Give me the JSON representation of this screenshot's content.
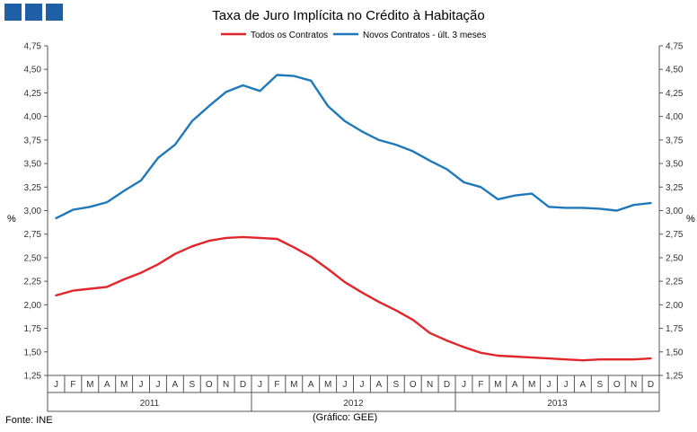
{
  "header": {
    "logo_color": "#1f5fa8"
  },
  "chart_data": {
    "type": "line",
    "title": "Taxa de Juro Implícita no Crédito à Habitação",
    "ylabel_left": "%",
    "ylabel_right": "%",
    "ylim": [
      1.25,
      4.75
    ],
    "yticks": [
      "1,25",
      "1,50",
      "1,75",
      "2,00",
      "2,25",
      "2,50",
      "2,75",
      "3,00",
      "3,25",
      "3,50",
      "3,75",
      "4,00",
      "4,25",
      "4,50",
      "4,75"
    ],
    "ytick_values": [
      1.25,
      1.5,
      1.75,
      2.0,
      2.25,
      2.5,
      2.75,
      3.0,
      3.25,
      3.5,
      3.75,
      4.0,
      4.25,
      4.5,
      4.75
    ],
    "months": [
      "J",
      "F",
      "M",
      "A",
      "M",
      "J",
      "J",
      "A",
      "S",
      "O",
      "N",
      "D",
      "J",
      "F",
      "M",
      "A",
      "M",
      "J",
      "J",
      "A",
      "S",
      "O",
      "N",
      "D",
      "J",
      "F",
      "M",
      "A",
      "M",
      "J",
      "J",
      "A",
      "S",
      "O",
      "N",
      "D"
    ],
    "years": [
      "2011",
      "2012",
      "2013"
    ],
    "series": [
      {
        "name": "Todos os Contratos",
        "color": "#e0262b",
        "values": [
          2.1,
          2.15,
          2.17,
          2.19,
          2.27,
          2.34,
          2.43,
          2.54,
          2.62,
          2.68,
          2.71,
          2.72,
          2.71,
          2.7,
          2.61,
          2.51,
          2.38,
          2.24,
          2.13,
          2.03,
          1.94,
          1.84,
          1.7,
          1.62,
          1.55,
          1.49,
          1.46,
          1.45,
          1.44,
          1.43,
          1.42,
          1.41,
          1.42,
          1.42,
          1.42,
          1.43
        ]
      },
      {
        "name": "Novos Contratos - últ. 3 meses",
        "color": "#1f78b8",
        "values": [
          2.92,
          3.01,
          3.04,
          3.09,
          3.21,
          3.32,
          3.56,
          3.7,
          3.95,
          4.11,
          4.26,
          4.33,
          4.27,
          4.44,
          4.43,
          4.38,
          4.11,
          3.95,
          3.84,
          3.75,
          3.7,
          3.63,
          3.53,
          3.44,
          3.3,
          3.25,
          3.12,
          3.16,
          3.18,
          3.04,
          3.03,
          3.03,
          3.02,
          3.0,
          3.06,
          3.08
        ]
      }
    ],
    "grid": false,
    "legend": "top-center"
  },
  "footer": {
    "source": "Fonte: INE",
    "credit": "(Gráfico: GEE)"
  }
}
